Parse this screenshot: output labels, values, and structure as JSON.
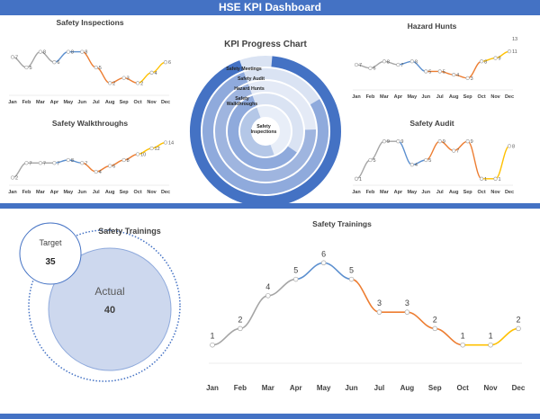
{
  "header": {
    "title": "HSE KPI Dashboard"
  },
  "colors": {
    "brand": "#4472c4",
    "line_gray": "#a5a5a5",
    "line_blue": "#5b8fcf",
    "line_orange": "#ed7d31",
    "line_gold": "#ffc000"
  },
  "months": [
    "Jan",
    "Feb",
    "Mar",
    "Apr",
    "May",
    "Jun",
    "Jul",
    "Aug",
    "Sep",
    "Oct",
    "Nov",
    "Dec"
  ],
  "radial": {
    "title": "KPI Progress Chart",
    "rings": [
      {
        "name": "Safety Meetings",
        "value": 0.93
      },
      {
        "name": "Safety Audit",
        "value": 0.78
      },
      {
        "name": "Hazard Hunts",
        "value": 0.7
      },
      {
        "name": "Safety Walkthroughs",
        "value": 0.6
      },
      {
        "name": "Safety Inspections",
        "value": 0.5
      }
    ]
  },
  "gauge": {
    "title": "Safety Trainings",
    "target_label": "Target",
    "target_value": "35",
    "actual_label": "Actual",
    "actual_value": "40"
  },
  "chart_data": [
    {
      "type": "line",
      "id": "inspections",
      "title": "Safety Inspections",
      "categories": [
        "Jan",
        "Feb",
        "Mar",
        "Apr",
        "May",
        "Jun",
        "Jul",
        "Aug",
        "Sep",
        "Oct",
        "Nov",
        "Dec"
      ],
      "values": [
        7,
        5,
        8,
        6,
        8,
        8,
        5,
        2,
        3,
        2,
        4,
        6
      ],
      "ylim": [
        0,
        10
      ]
    },
    {
      "type": "line",
      "id": "hazard",
      "title": "Hazard Hunts",
      "categories": [
        "Jan",
        "Feb",
        "Mar",
        "Apr",
        "May",
        "Jun",
        "Jul",
        "Aug",
        "Sep",
        "Oct",
        "Nov",
        "Dec"
      ],
      "values": [
        7,
        6,
        8,
        7,
        8,
        5,
        5,
        4,
        3,
        8,
        9,
        11
      ],
      "ylim": [
        0,
        14
      ],
      "top_label": "13"
    },
    {
      "type": "line",
      "id": "walkthroughs",
      "title": "Safety Walkthroughs",
      "categories": [
        "Jan",
        "Feb",
        "Mar",
        "Apr",
        "May",
        "Jun",
        "Jul",
        "Aug",
        "Sep",
        "Oct",
        "Nov",
        "Dec"
      ],
      "values": [
        2,
        7,
        7,
        7,
        8,
        7,
        4,
        6,
        8,
        10,
        12,
        14
      ],
      "ylim": [
        0,
        16
      ]
    },
    {
      "type": "line",
      "id": "audit",
      "title": "Safety Audit",
      "categories": [
        "Jan",
        "Feb",
        "Mar",
        "Apr",
        "May",
        "Jun",
        "Jul",
        "Aug",
        "Sep",
        "Oct",
        "Nov",
        "Dec"
      ],
      "values": [
        1,
        5,
        9,
        9,
        4,
        5,
        9,
        7,
        9,
        1,
        1,
        8
      ],
      "ylim": [
        0,
        10
      ]
    },
    {
      "type": "line",
      "id": "trainings",
      "title": "Safety Trainings",
      "categories": [
        "Jan",
        "Feb",
        "Mar",
        "Apr",
        "May",
        "Jun",
        "Jul",
        "Aug",
        "Sep",
        "Oct",
        "Nov",
        "Dec"
      ],
      "values": [
        1,
        2,
        4,
        5,
        6,
        5,
        3,
        3,
        2,
        1,
        1,
        2
      ],
      "ylim": [
        0,
        7
      ]
    }
  ]
}
